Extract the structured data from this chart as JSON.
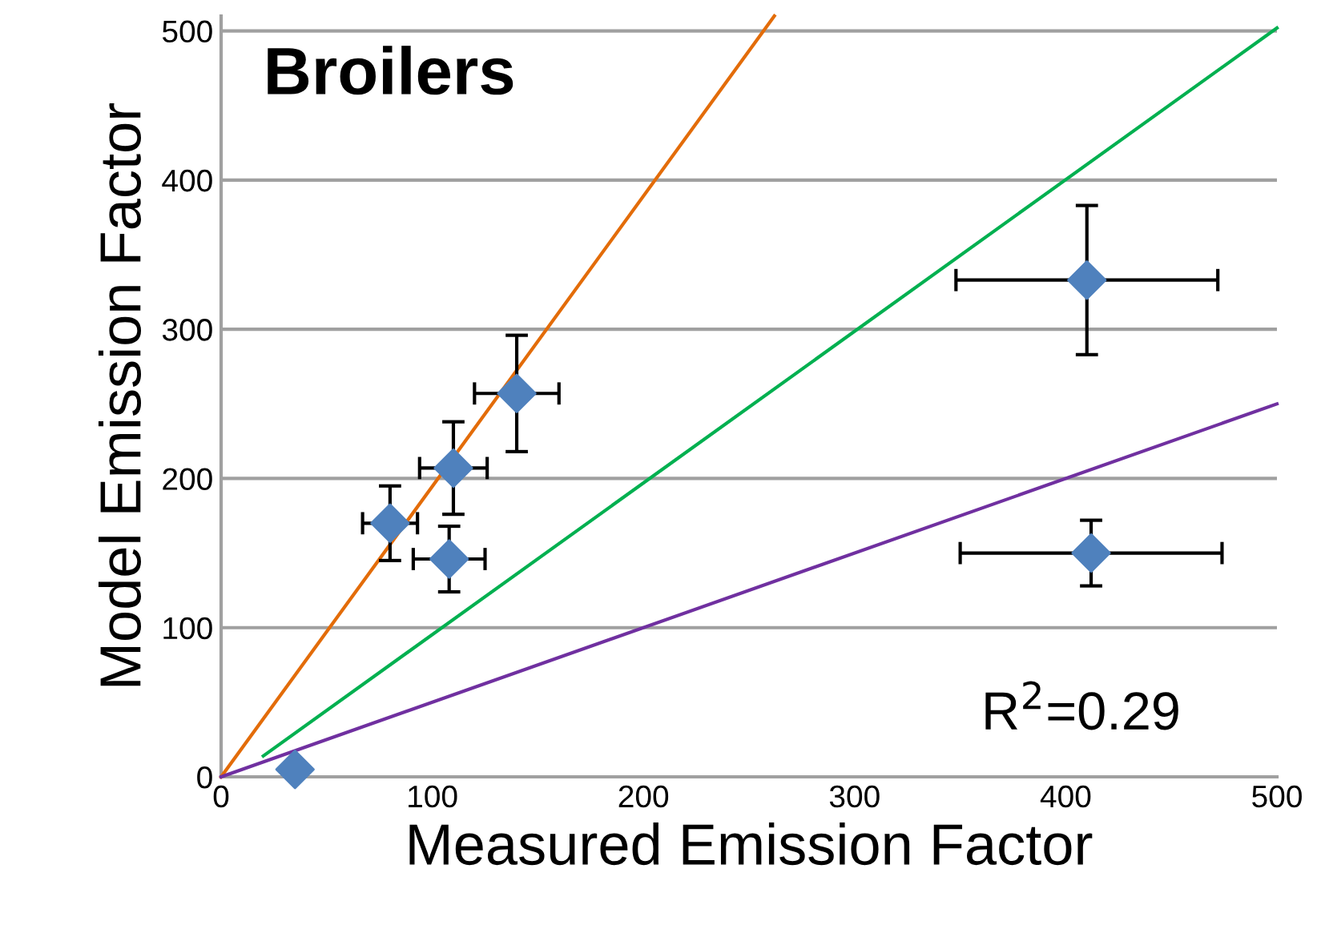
{
  "chart_data": {
    "type": "scatter",
    "xlabel": "Measured Emission Factor",
    "ylabel": "Model Emission Factor",
    "annotations": [
      "Broilers",
      "R$^{2}$=0.29"
    ],
    "xlim": [
      0,
      500
    ],
    "ylim": [
      0,
      510
    ],
    "xticks": [
      0,
      100,
      200,
      300,
      400,
      500
    ],
    "yticks": [
      0,
      100,
      200,
      300,
      400,
      500
    ],
    "grid": "y",
    "series": [
      {
        "color": "#4f81bd",
        "marker": "diamond",
        "x": [
          35,
          80,
          108,
          110,
          140,
          410,
          412
        ],
        "values": [
          5,
          170,
          146,
          207,
          257,
          333,
          150
        ],
        "errors": [
          null,
          25,
          22,
          31,
          39,
          50,
          22
        ],
        "xerrors": [
          null,
          13,
          17,
          16,
          20,
          62,
          62
        ]
      },
      {
        "type": "line",
        "color": "#e36c09",
        "x": [
          0,
          262
        ],
        "values": [
          0,
          510
        ]
      },
      {
        "type": "line",
        "color": "#00b050",
        "x": [
          20,
          500
        ],
        "values": [
          14,
          502
        ]
      },
      {
        "type": "line",
        "color": "#7030a0",
        "x": [
          0,
          500
        ],
        "values": [
          0,
          250
        ]
      }
    ]
  }
}
